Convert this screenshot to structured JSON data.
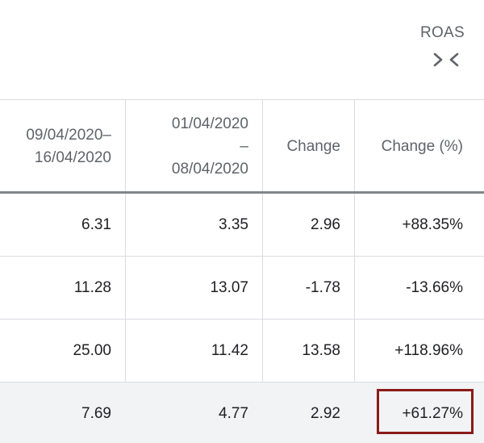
{
  "group": {
    "title": "ROAS",
    "toggle_icon": "collapse-columns-icon"
  },
  "columns": [
    {
      "lines": [
        "09/04/2020–",
        "16/04/2020"
      ]
    },
    {
      "lines": [
        "01/04/2020",
        "–",
        "08/04/2020"
      ]
    },
    {
      "lines": [
        "Change"
      ]
    },
    {
      "lines": [
        "Change (%)"
      ]
    }
  ],
  "rows": [
    {
      "cells": [
        "6.31",
        "3.35",
        "2.96",
        "+88.35%"
      ]
    },
    {
      "cells": [
        "11.28",
        "13.07",
        "-1.78",
        "-13.66%"
      ]
    },
    {
      "cells": [
        "25.00",
        "11.42",
        "13.58",
        "+118.96%"
      ]
    },
    {
      "cells": [
        "7.69",
        "4.77",
        "2.92",
        "+61.27%"
      ]
    }
  ],
  "highlight": {
    "row": 3,
    "column": 3,
    "box_color": "#8b1a1a",
    "row_background": "#f1f3f4"
  }
}
